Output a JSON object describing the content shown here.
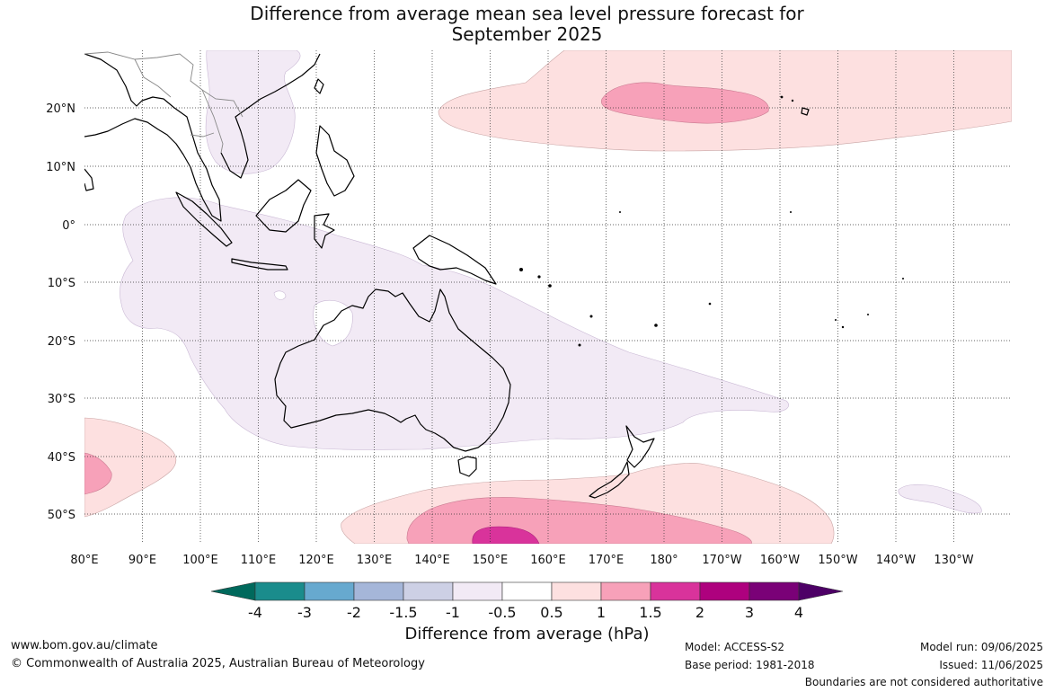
{
  "title": {
    "line1": "Difference from average mean sea level pressure forecast for",
    "line2": "September 2025"
  },
  "map": {
    "lon_labels": [
      "80°E",
      "90°E",
      "100°E",
      "110°E",
      "120°E",
      "130°E",
      "140°E",
      "150°E",
      "160°E",
      "170°E",
      "180°",
      "170°W",
      "160°W",
      "150°W",
      "140°W",
      "130°W"
    ],
    "lat_labels": [
      "20°N",
      "10°N",
      "0°",
      "10°S",
      "20°S",
      "30°S",
      "40°S",
      "50°S"
    ],
    "regions": [
      {
        "name": "north-pacific-positive-anomaly",
        "level": "0.5 to 1 hPa"
      },
      {
        "name": "north-pacific-positive-core",
        "level": "1 to 1.5 hPa"
      },
      {
        "name": "southern-ocean-positive-anomaly",
        "level": "0.5 to 1 hPa"
      },
      {
        "name": "southern-ocean-positive-core",
        "level": "1 to 1.5 hPa"
      },
      {
        "name": "southern-ocean-strong-core",
        "level": "1.5 to 2 hPa"
      },
      {
        "name": "southwest-indian-positive-anomaly",
        "level": "0.5 to 1 hPa"
      },
      {
        "name": "australia-negative-anomaly",
        "level": "-0.5 to -1 hPa"
      }
    ]
  },
  "colorbar": {
    "colors": [
      "#00695c",
      "#1a8c8c",
      "#67a9cf",
      "#a5b6d9",
      "#cdd0e5",
      "#f2eaf5",
      "#ffffff",
      "#fde0e0",
      "#f7a1b9",
      "#d9339b",
      "#ae017e",
      "#7a0177",
      "#4d0066"
    ],
    "tick_labels": [
      "-4",
      "-3",
      "-2",
      "-1.5",
      "-1",
      "-0.5",
      "0.5",
      "1",
      "1.5",
      "2",
      "3",
      "4"
    ],
    "title": "Difference from average (hPa)"
  },
  "footer": {
    "website": "www.bom.gov.au/climate",
    "copyright": "© Commonwealth of Australia 2025, Australian Bureau of Meteorology",
    "model": "Model: ACCESS-S2",
    "base_period": "Base period: 1981-2018",
    "model_run": "Model run: 09/06/2025",
    "issued": "Issued: 11/06/2025",
    "disclaimer": "Boundaries are not considered authoritative"
  }
}
